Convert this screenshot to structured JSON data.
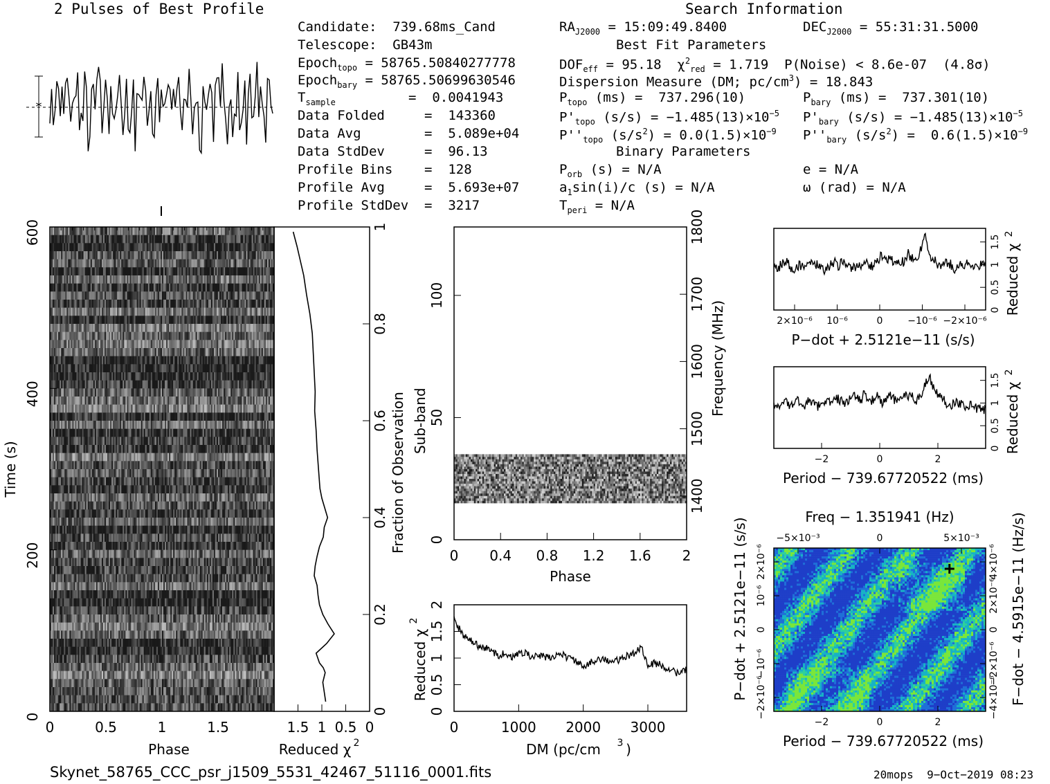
{
  "header": {
    "profile_title": "2 Pulses of Best Profile",
    "search_title": "Search Information",
    "best_fit_title": "Best Fit Parameters",
    "binary_title": "Binary Parameters"
  },
  "info": {
    "candidate": "Candidate:  739.68ms_Cand",
    "telescope": "Telescope:  GB43m",
    "epoch_topo_label": "Epoch",
    "epoch_topo_sub": "topo",
    "epoch_topo_val": " = 58765.50840277778",
    "epoch_bary_label": "Epoch",
    "epoch_bary_sub": "bary",
    "epoch_bary_val": " = 58765.50699630546",
    "tsample_label": "T",
    "tsample_sub": "sample",
    "tsample_val": "=  0.0041943",
    "data_folded": "Data Folded     =  143360",
    "data_avg": "Data Avg        =  5.089e+04",
    "data_stddev": "Data StdDev     =  96.13",
    "profile_bins": "Profile Bins    =  128",
    "profile_avg": "Profile Avg     =  5.693e+07",
    "profile_stddev": "Profile StdDev  =  3217"
  },
  "search": {
    "ra": "= 15:09:49.8400",
    "ra_label": "RA",
    "ra_sub": "J2000",
    "dec": "= 55:31:31.5000",
    "dec_label": "DEC",
    "dec_sub": "J2000",
    "dof": "DOF",
    "dof_sub": "eff",
    "dof_val": " = 95.18  ",
    "chi_label": "χ",
    "chi_sup": "2",
    "chi_sub": "red",
    "chi_val": " = 1.719  P(Noise) < 8.6e-07  (4.8σ)",
    "dm": "Dispersion Measure (DM; pc/cm",
    "dm_sup": "3",
    "dm_val": ") = 18.843",
    "ptopo_label": "P",
    "ptopo_sub": "topo",
    "ptopo_val": " (ms) =  737.296(10)",
    "pbary_label": "P",
    "pbary_sub": "bary",
    "pbary_val": " (ms) =  737.301(10)",
    "pdtopo_label": "P'",
    "pdtopo_sub": "topo",
    "pdtopo_val": " (s/s) = −1.485(13)×10",
    "pdtopo_exp": "−5",
    "pdbary_label": "P'",
    "pdbary_sub": "bary",
    "pdbary_val": " (s/s) = −1.485(13)×10",
    "pdbary_exp": "−5",
    "pddtopo_label": "P''",
    "pddtopo_sub": "topo",
    "pddtopo_val": " (s/s",
    "pddtopo_sup": "2",
    "pddtopo_val2": ") = 0.0(1.5)×10",
    "pddtopo_exp": "−9",
    "pddbary_label": "P''",
    "pddbary_sub": "bary",
    "pddbary_val": " (s/s",
    "pddbary_sup": "2",
    "pddbary_val2": ") =  0.6(1.5)×10",
    "pddbary_exp": "−9",
    "porb_label": "P",
    "porb_sub": "orb",
    "porb_val": " (s) = N/A",
    "e_val": "e = N/A",
    "a1_label": "a",
    "a1_sub": "1",
    "a1_val": "sin(i)/c (s) = N/A",
    "omega_val": "ω (rad) = N/A",
    "tperi_label": "T",
    "tperi_sub": "peri",
    "tperi_val": " = N/A"
  },
  "footer": {
    "filename": "Skynet_58765_CCC_psr_j1509_5531_42467_51116_0001.fits",
    "stamp": "20mops  9−Oct−2019 08:23"
  },
  "colors": {
    "ink": "#000000",
    "grid_low": "#1a3cc8",
    "grid_mid": "#12b4c8",
    "grid_high": "#6ee03c"
  },
  "chart_data": [
    {
      "type": "line",
      "id": "profile",
      "title": "2 Pulses of Best Profile",
      "x": [
        0,
        0.02,
        0.04,
        0.06,
        0.08,
        0.1,
        0.12,
        0.14,
        0.16,
        0.18,
        0.2,
        0.22,
        0.24,
        0.26,
        0.28,
        0.3,
        0.32,
        0.34,
        0.36,
        0.38,
        0.4,
        0.42,
        0.44,
        0.46,
        0.48,
        0.5,
        0.52,
        0.54,
        0.56,
        0.58,
        0.6,
        0.62,
        0.64,
        0.66,
        0.68,
        0.7,
        0.72,
        0.74,
        0.76,
        0.78,
        0.8,
        0.82,
        0.84,
        0.86,
        0.88,
        0.9,
        0.92,
        0.94,
        0.96,
        0.98,
        1.0
      ],
      "values": [
        0.2,
        -0.8,
        0.6,
        1.4,
        -0.2,
        0.9,
        -1.3,
        1.8,
        0.4,
        -2.1,
        1.1,
        0.3,
        2.2,
        -0.5,
        -1.0,
        1.6,
        0.7,
        -2.4,
        0.2,
        1.3,
        -0.6,
        2.0,
        0.9,
        -1.7,
        0.5,
        1.2,
        -1.1,
        2.3,
        -0.3,
        -1.5,
        0.8,
        1.9,
        -0.9,
        0.1,
        2.1,
        -1.8,
        0.6,
        1.0,
        -2.2,
        1.5,
        0.3,
        -0.7,
        2.4,
        -1.2,
        0.4,
        1.7,
        -1.9,
        0.9,
        2.0,
        -0.4,
        1.1
      ],
      "repeat": 2
    },
    {
      "type": "heatmap",
      "id": "time-phase",
      "xlabel": "Phase",
      "ylabel": "Time (s)",
      "x_ticks": [
        "0",
        "0.5",
        "1",
        "1.5"
      ],
      "y_ticks": [
        "0",
        "200",
        "400",
        "600"
      ],
      "xlim": [
        0,
        2
      ],
      "ylim": [
        0,
        600
      ],
      "y2label": "Fraction of Observation",
      "y2_ticks": [
        "0",
        "0.2",
        "0.4",
        "0.6",
        "0.8",
        "1"
      ]
    },
    {
      "type": "line",
      "id": "time-chi",
      "xlabel": "Reduced χ",
      "xlabel_sup": "2",
      "x_ticks": [
        "1.5",
        "1",
        "0.5",
        "0"
      ],
      "xlim": [
        2,
        0
      ],
      "x": [
        0.92,
        0.95,
        0.98,
        0.93,
        0.97,
        1.05,
        1.12,
        0.9,
        0.74,
        0.87,
        0.98,
        1.05,
        1.08,
        1.1,
        1.16,
        1.14,
        1.1,
        1.05,
        0.97,
        0.95,
        0.88,
        0.94,
        1.0,
        1.04,
        1.07,
        1.1,
        1.12,
        1.15,
        1.14,
        1.16,
        1.18,
        1.2,
        1.25,
        1.32,
        1.38,
        1.45,
        1.52,
        1.6
      ],
      "y": [
        0.02,
        0.04,
        0.06,
        0.08,
        0.09,
        0.1,
        0.12,
        0.14,
        0.16,
        0.18,
        0.2,
        0.22,
        0.24,
        0.26,
        0.28,
        0.3,
        0.32,
        0.34,
        0.36,
        0.38,
        0.4,
        0.42,
        0.44,
        0.46,
        0.5,
        0.54,
        0.58,
        0.62,
        0.66,
        0.7,
        0.74,
        0.78,
        0.82,
        0.86,
        0.9,
        0.93,
        0.96,
        0.99
      ]
    },
    {
      "type": "heatmap",
      "id": "subband-phase",
      "xlabel": "Phase",
      "ylabel": "Sub-band",
      "x_ticks": [
        "0",
        "0.4",
        "0.8",
        "1.2",
        "1.6",
        "2"
      ],
      "y_ticks": [
        "0",
        "50",
        "100"
      ],
      "xlim": [
        0,
        2
      ],
      "ylim": [
        0,
        128
      ],
      "y2label": "Frequency (MHz)",
      "y2_ticks": [
        "1400",
        "1500",
        "1600",
        "1700",
        "1800"
      ],
      "active_subbands": [
        15,
        35
      ]
    },
    {
      "type": "line",
      "id": "dm-chi",
      "xlabel": "DM (pc/cm",
      "xlabel_sup": "3",
      "xlabel_end": ")",
      "ylabel": "Reduced χ",
      "ylabel_sup": "2",
      "x_ticks": [
        "0",
        "1000",
        "2000",
        "3000"
      ],
      "y_ticks": [
        "0",
        "0.5",
        "1",
        "1.5",
        "2"
      ],
      "xlim": [
        0,
        3600
      ],
      "ylim": [
        0,
        2
      ],
      "x": [
        0,
        100,
        200,
        300,
        400,
        500,
        600,
        700,
        800,
        900,
        1000,
        1100,
        1200,
        1300,
        1400,
        1500,
        1600,
        1700,
        1800,
        1900,
        2000,
        2100,
        2200,
        2300,
        2400,
        2500,
        2600,
        2700,
        2800,
        2900,
        3000,
        3100,
        3200,
        3300,
        3400,
        3500,
        3600
      ],
      "values": [
        1.75,
        1.5,
        1.35,
        1.3,
        1.2,
        1.18,
        1.12,
        1.05,
        1.1,
        1.0,
        1.08,
        1.12,
        1.0,
        1.05,
        1.02,
        1.0,
        1.08,
        1.05,
        0.98,
        0.95,
        0.8,
        0.9,
        0.98,
        1.0,
        0.92,
        0.95,
        0.98,
        1.05,
        1.1,
        1.22,
        0.85,
        0.9,
        0.88,
        0.8,
        0.75,
        0.7,
        0.78
      ]
    },
    {
      "type": "line",
      "id": "pdot-chi",
      "xlabel": "P−dot + 2.5121e−11 (s/s)",
      "ylabel": "Reduced χ",
      "ylabel_sup": "2",
      "x_ticks": [
        "2×10⁻⁶",
        "10⁻⁶",
        "0",
        "−10⁻⁶",
        "−2×10⁻⁶"
      ],
      "y_ticks": [
        "0",
        "0.5",
        "1",
        "1.5"
      ],
      "ylim": [
        0,
        1.8
      ],
      "values": [
        1.0,
        0.9,
        1.05,
        1.1,
        0.85,
        0.95,
        1.0,
        0.9,
        1.1,
        0.95,
        1.0,
        0.9,
        0.85,
        1.0,
        1.05,
        0.95,
        1.1,
        1.0,
        0.9,
        0.95,
        1.0,
        1.05,
        1.0,
        0.95,
        1.1,
        1.2,
        1.05,
        1.15,
        1.0,
        1.1,
        1.05,
        1.25,
        1.15,
        1.1,
        1.35,
        1.6,
        1.2,
        1.1,
        1.0,
        0.95,
        1.05,
        1.0,
        0.9,
        1.0,
        0.95,
        1.05,
        1.0,
        0.9,
        1.0,
        0.95
      ]
    },
    {
      "type": "line",
      "id": "period-chi",
      "xlabel": "Period − 739.67720522 (ms)",
      "ylabel": "Reduced χ",
      "ylabel_sup": "2",
      "x_ticks": [
        "2",
        "0",
        "−2"
      ],
      "y_ticks": [
        "0",
        "0.5",
        "1",
        "1.5"
      ],
      "ylim": [
        0,
        1.8
      ],
      "values": [
        1.0,
        0.95,
        1.05,
        1.0,
        0.9,
        1.1,
        1.0,
        0.95,
        1.05,
        1.0,
        0.92,
        1.0,
        1.08,
        1.0,
        1.05,
        1.1,
        1.0,
        1.05,
        1.1,
        1.15,
        1.05,
        1.2,
        1.1,
        1.05,
        1.15,
        1.0,
        1.1,
        1.15,
        1.05,
        1.1,
        1.2,
        1.1,
        1.15,
        1.05,
        1.2,
        1.4,
        1.6,
        1.3,
        1.2,
        1.1,
        1.0,
        0.95,
        1.05,
        1.0,
        0.9,
        0.95,
        1.0,
        0.85,
        0.9,
        0.85
      ]
    },
    {
      "type": "heatmap",
      "id": "p-pdot",
      "title": "Freq − 1.351941 (Hz)",
      "xlabel": "Period − 739.67720522 (ms)",
      "ylabel": "P−dot + 2.5121e−11 (s/s)",
      "y2label": "F−dot − 4.5915e−11 (Hz/s)",
      "x_ticks": [
        "2",
        "0",
        "−2"
      ],
      "top_ticks": [
        "−5×10⁻³",
        "0",
        "5×10⁻³"
      ],
      "y_ticks": [
        "2×10⁻⁶",
        "10⁻⁶",
        "0",
        "−10⁻⁶",
        "−2×10⁻⁶"
      ],
      "y2_ticks": [
        "−4×10⁻⁶",
        "−2×10⁻⁶",
        "0",
        "2×10⁻⁶",
        "4×10⁻⁶"
      ],
      "best": {
        "period": -2.4,
        "pdot": 2e-06
      }
    }
  ]
}
